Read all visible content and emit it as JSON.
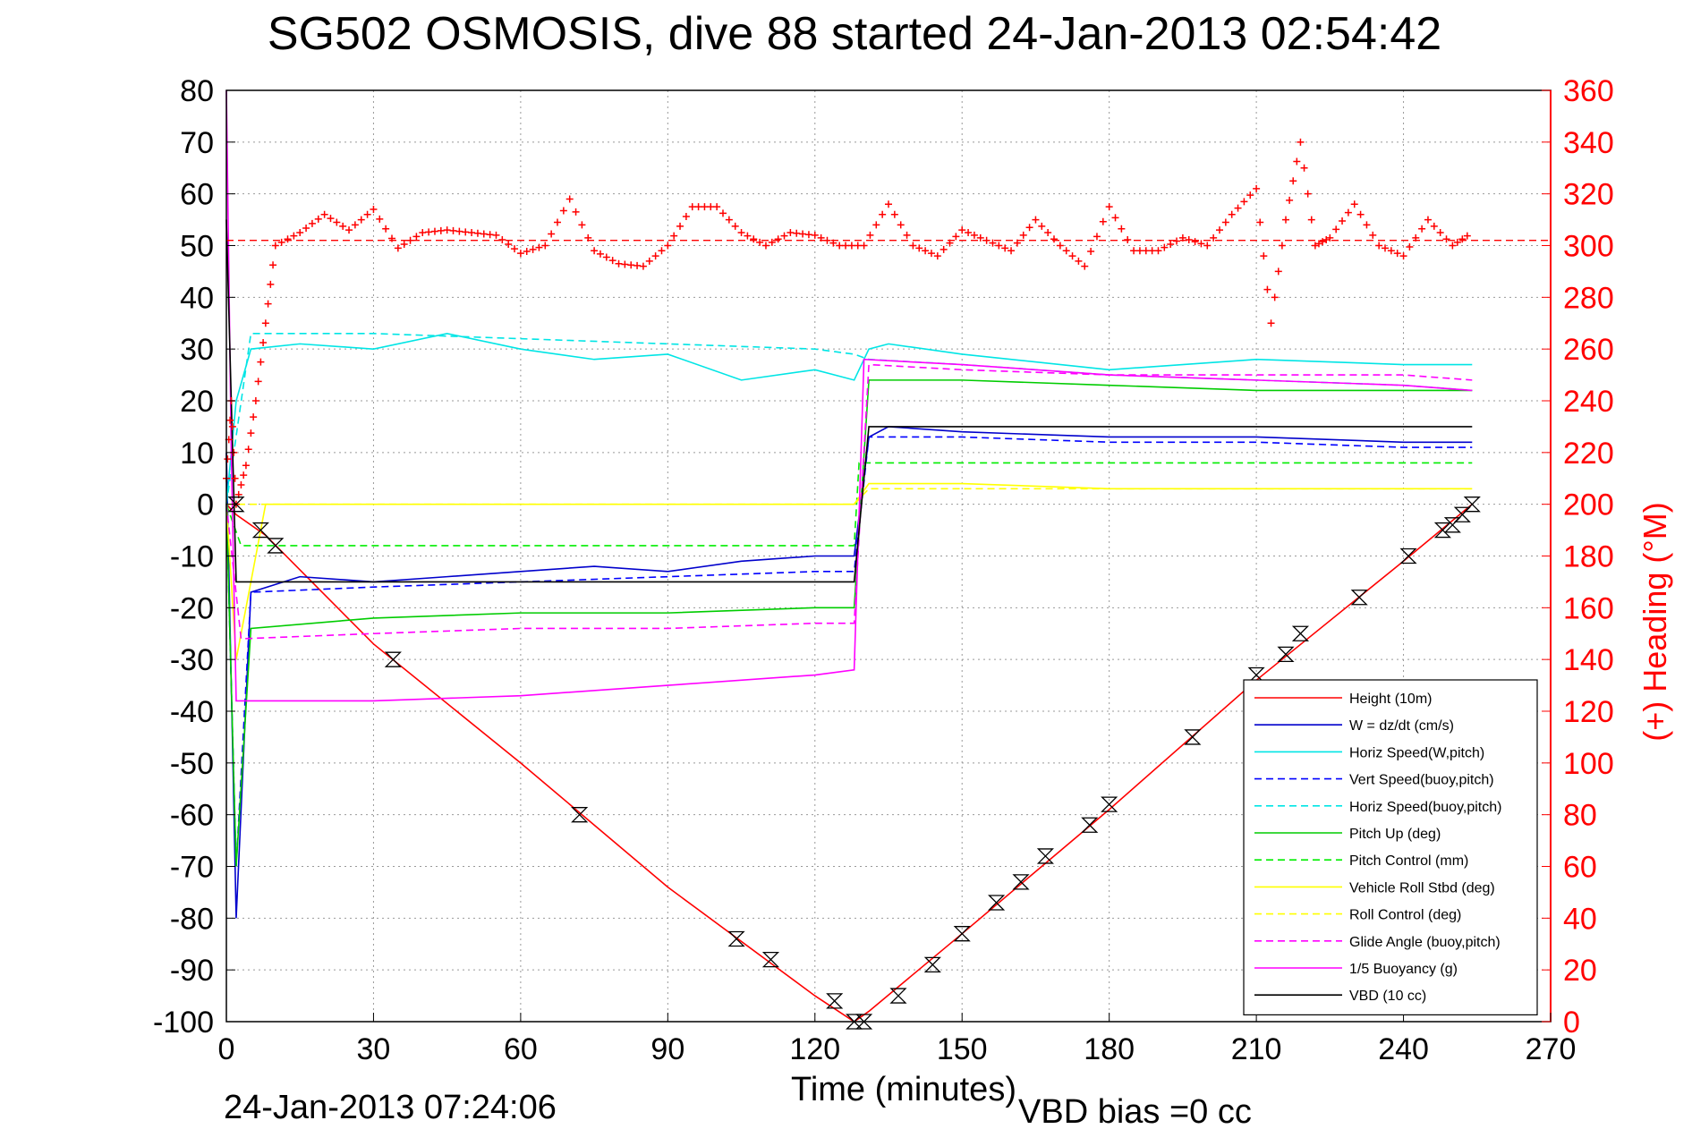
{
  "chart_data": {
    "type": "line",
    "title": "SG502 OSMOSIS, dive 88 started 24-Jan-2013 02:54:42",
    "xlabel": "Time (minutes)",
    "ylabel": "",
    "y2label": "(+) Heading (°M)",
    "footer_left": "24-Jan-2013 07:24:06",
    "footer_right": "VBD bias =0 cc",
    "xlim": [
      0,
      270
    ],
    "ylim": [
      -100,
      80
    ],
    "y2lim": [
      0,
      360
    ],
    "xticks": [
      "0",
      "30",
      "60",
      "90",
      "120",
      "150",
      "180",
      "210",
      "240",
      "270"
    ],
    "yticks": [
      "80",
      "70",
      "60",
      "50",
      "40",
      "30",
      "20",
      "10",
      "0",
      "-10",
      "-20",
      "-30",
      "-40",
      "-50",
      "-60",
      "-70",
      "-80",
      "-90",
      "-100"
    ],
    "y2ticks": [
      "360",
      "340",
      "320",
      "300",
      "280",
      "260",
      "240",
      "220",
      "200",
      "180",
      "160",
      "140",
      "120",
      "100",
      "80",
      "60",
      "40",
      "20",
      "0"
    ],
    "grid": true,
    "legend_position": "bottom-right",
    "series": [
      {
        "name": "Height (10m)",
        "color": "#ff0000",
        "style": "solid",
        "x": [
          0,
          2,
          8,
          30,
          60,
          90,
          120,
          128,
          131,
          150,
          180,
          210,
          240,
          254
        ],
        "y": [
          0,
          -2,
          -6,
          -27,
          -50,
          -74,
          -95,
          -100,
          -98,
          -83,
          -59,
          -34,
          -11,
          0
        ]
      },
      {
        "name": "W = dz/dt (cm/s)",
        "color": "#0000cc",
        "style": "solid",
        "x": [
          0,
          2,
          5,
          15,
          30,
          45,
          60,
          75,
          90,
          105,
          120,
          128,
          131,
          135,
          150,
          180,
          210,
          240,
          254
        ],
        "y": [
          10,
          -80,
          -17,
          -14,
          -15,
          -14,
          -13,
          -12,
          -13,
          -11,
          -10,
          -10,
          13,
          15,
          14,
          13,
          13,
          12,
          12
        ]
      },
      {
        "name": "Horiz Speed(W,pitch)",
        "color": "#00e5e5",
        "style": "solid",
        "x": [
          0,
          2,
          5,
          15,
          30,
          45,
          60,
          75,
          90,
          105,
          120,
          128,
          131,
          135,
          150,
          180,
          210,
          240,
          254
        ],
        "y": [
          0,
          20,
          30,
          31,
          30,
          33,
          30,
          28,
          29,
          24,
          26,
          24,
          30,
          31,
          29,
          26,
          28,
          27,
          27
        ]
      },
      {
        "name": "Vert Speed(buoy,pitch)",
        "color": "#0000ff",
        "style": "dashed",
        "x": [
          0,
          2,
          5,
          30,
          60,
          90,
          120,
          128,
          131,
          150,
          180,
          210,
          240,
          254
        ],
        "y": [
          0,
          -70,
          -17,
          -16,
          -15,
          -14,
          -13,
          -13,
          13,
          13,
          12,
          12,
          11,
          11
        ]
      },
      {
        "name": "Horiz Speed(buoy,pitch)",
        "color": "#00e5e5",
        "style": "dashed",
        "x": [
          0,
          5,
          30,
          60,
          90,
          120,
          128,
          131,
          150,
          180,
          210,
          240,
          254
        ],
        "y": [
          0,
          33,
          33,
          32,
          31,
          30,
          29,
          28,
          27,
          25,
          24,
          23,
          22
        ]
      },
      {
        "name": "Pitch Up (deg)",
        "color": "#00cc00",
        "style": "solid",
        "x": [
          0,
          2,
          5,
          30,
          60,
          90,
          120,
          128,
          131,
          150,
          180,
          210,
          240,
          254
        ],
        "y": [
          0,
          -70,
          -24,
          -22,
          -21,
          -21,
          -20,
          -20,
          24,
          24,
          23,
          22,
          22,
          22
        ]
      },
      {
        "name": "Pitch Control (mm)",
        "color": "#00ee00",
        "style": "dashed",
        "x": [
          0,
          3,
          128,
          129,
          254
        ],
        "y": [
          0,
          -8,
          -8,
          8,
          8
        ]
      },
      {
        "name": "Vehicle Roll Stbd (deg)",
        "color": "#ffff00",
        "style": "solid",
        "x": [
          0,
          2,
          8,
          30,
          60,
          90,
          120,
          128,
          131,
          150,
          180,
          210,
          240,
          254
        ],
        "y": [
          0,
          -30,
          0,
          0,
          0,
          0,
          0,
          0,
          4,
          4,
          3,
          3,
          3,
          3
        ]
      },
      {
        "name": "Roll Control (deg)",
        "color": "#ffff00",
        "style": "dashed",
        "x": [
          0,
          5,
          128,
          131,
          254
        ],
        "y": [
          0,
          0,
          0,
          3,
          3
        ]
      },
      {
        "name": "Glide Angle (buoy,pitch)",
        "color": "#ff00ff",
        "style": "dashed",
        "x": [
          0,
          3,
          30,
          60,
          90,
          120,
          128,
          131,
          150,
          180,
          210,
          240,
          254
        ],
        "y": [
          0,
          -26,
          -25,
          -24,
          -24,
          -23,
          -23,
          27,
          26,
          25,
          25,
          25,
          24
        ]
      },
      {
        "name": "1/5 Buoyancy (g)",
        "color": "#ff00ff",
        "style": "solid",
        "x": [
          0,
          1,
          2,
          30,
          60,
          90,
          120,
          128,
          130,
          150,
          180,
          210,
          240,
          254
        ],
        "y": [
          80,
          10,
          -38,
          -38,
          -37,
          -35,
          -33,
          -32,
          28,
          27,
          25,
          24,
          23,
          22
        ]
      },
      {
        "name": "VBD (10 cc)",
        "color": "#000000",
        "style": "solid",
        "x": [
          0,
          2,
          128,
          131,
          254
        ],
        "y": [
          55,
          -15,
          -15,
          15,
          15
        ]
      }
    ],
    "heading_series": {
      "color": "#ff0000",
      "marker": "+",
      "mean": 302,
      "axis": "right",
      "x": [
        0,
        1,
        2,
        4,
        6,
        8,
        10,
        15,
        20,
        25,
        30,
        35,
        40,
        45,
        50,
        55,
        60,
        65,
        70,
        75,
        80,
        85,
        90,
        95,
        100,
        105,
        110,
        115,
        120,
        125,
        130,
        135,
        140,
        145,
        150,
        155,
        160,
        165,
        170,
        175,
        180,
        185,
        190,
        195,
        200,
        205,
        210,
        213,
        216,
        219,
        222,
        225,
        230,
        235,
        240,
        245,
        250,
        254
      ],
      "y": [
        210,
        240,
        200,
        215,
        240,
        270,
        300,
        305,
        312,
        306,
        314,
        299,
        305,
        306,
        305,
        304,
        297,
        300,
        318,
        298,
        293,
        292,
        300,
        315,
        315,
        305,
        300,
        305,
        304,
        300,
        300,
        316,
        300,
        296,
        306,
        302,
        298,
        310,
        300,
        292,
        315,
        298,
        298,
        303,
        300,
        312,
        322,
        270,
        310,
        340,
        300,
        303,
        316,
        300,
        296,
        310,
        300,
        305
      ]
    },
    "markers": {
      "color": "#000000",
      "marker": "triangle-hourglass",
      "x": [
        2,
        7,
        10,
        34,
        72,
        104,
        111,
        124,
        128,
        130,
        137,
        144,
        150,
        157,
        162,
        167,
        176,
        180,
        197,
        210,
        216,
        219,
        231,
        241,
        248,
        250,
        252,
        254
      ],
      "y": [
        0,
        -5,
        -8,
        -30,
        -60,
        -84,
        -88,
        -96,
        -100,
        -100,
        -95,
        -89,
        -83,
        -77,
        -73,
        -68,
        -62,
        -58,
        -45,
        -33,
        -29,
        -25,
        -18,
        -10,
        -5,
        -4,
        -2,
        0
      ]
    }
  }
}
